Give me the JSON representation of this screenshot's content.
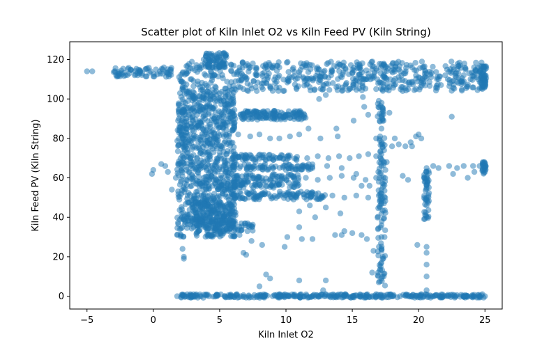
{
  "chart_data": {
    "type": "scatter",
    "title": "Scatter plot of Kiln Inlet O2 vs Kiln Feed PV (Kiln String)",
    "xlabel": "Kiln Inlet O2",
    "ylabel": "Kiln Feed PV (Kiln String)",
    "xlim": [
      -6.3,
      26.3
    ],
    "ylim": [
      -6.5,
      129
    ],
    "xticks": [
      -5,
      0,
      5,
      10,
      15,
      20,
      25
    ],
    "yticks": [
      0,
      20,
      40,
      60,
      80,
      100,
      120
    ],
    "grid": false,
    "legend": "none",
    "marker_color": "#1f77b4",
    "marker_alpha": 0.5,
    "points": [
      [
        -5.0,
        114
      ],
      [
        -4.6,
        114
      ],
      [
        -2.8,
        112
      ],
      [
        -2.5,
        113
      ],
      [
        -2.1,
        112
      ],
      [
        -1.8,
        113
      ],
      [
        -1.4,
        112
      ],
      [
        -1.0,
        114
      ],
      [
        -0.6,
        115
      ],
      [
        -0.2,
        114
      ],
      [
        0.2,
        115
      ],
      [
        0.5,
        114
      ],
      [
        0.8,
        116
      ],
      [
        0.7,
        115
      ],
      [
        -0.1,
        62
      ],
      [
        0.0,
        64
      ],
      [
        0.6,
        67
      ],
      [
        0.9,
        66
      ],
      [
        1.1,
        63
      ],
      [
        1.4,
        54
      ],
      [
        1.7,
        60
      ],
      [
        1.8,
        31
      ],
      [
        2.0,
        34
      ],
      [
        2.2,
        24
      ],
      [
        2.3,
        20
      ],
      [
        2.3,
        19
      ],
      [
        2.0,
        84
      ],
      [
        2.4,
        77
      ],
      [
        2.2,
        90
      ],
      [
        1.9,
        97
      ],
      [
        2.2,
        113
      ],
      [
        2.8,
        110
      ],
      [
        3.3,
        116
      ],
      [
        3.8,
        120
      ],
      [
        4.2,
        123
      ],
      [
        4.6,
        122
      ],
      [
        5.0,
        121
      ],
      [
        5.2,
        118
      ],
      [
        2.7,
        104
      ],
      [
        3.1,
        100
      ],
      [
        3.5,
        95
      ],
      [
        3.9,
        90
      ],
      [
        4.3,
        86
      ],
      [
        4.7,
        80
      ],
      [
        5.1,
        76
      ],
      [
        5.5,
        72
      ],
      [
        2.9,
        68
      ],
      [
        3.4,
        64
      ],
      [
        3.8,
        60
      ],
      [
        4.2,
        56
      ],
      [
        4.6,
        52
      ],
      [
        5.0,
        48
      ],
      [
        5.4,
        45
      ],
      [
        5.8,
        42
      ],
      [
        3.1,
        40
      ],
      [
        3.6,
        38
      ],
      [
        4.0,
        36
      ],
      [
        4.4,
        38
      ],
      [
        4.8,
        40
      ],
      [
        5.2,
        37
      ],
      [
        3.0,
        45
      ],
      [
        4.5,
        44
      ],
      [
        3.3,
        92
      ],
      [
        3.7,
        85
      ],
      [
        4.1,
        78
      ],
      [
        4.9,
        70
      ],
      [
        5.3,
        66
      ],
      [
        5.9,
        62
      ],
      [
        6.3,
        58
      ],
      [
        6.8,
        55
      ],
      [
        6.0,
        35
      ],
      [
        6.5,
        31
      ],
      [
        7.1,
        33
      ],
      [
        6.8,
        22
      ],
      [
        7.4,
        28
      ],
      [
        8.2,
        26
      ],
      [
        7.0,
        21
      ],
      [
        6.6,
        92
      ],
      [
        7.2,
        92
      ],
      [
        7.8,
        91
      ],
      [
        8.4,
        93
      ],
      [
        9.0,
        92
      ],
      [
        9.6,
        91
      ],
      [
        10.2,
        92
      ],
      [
        10.8,
        92
      ],
      [
        6.4,
        82
      ],
      [
        7.3,
        81
      ],
      [
        8.0,
        82
      ],
      [
        8.8,
        80
      ],
      [
        9.5,
        80
      ],
      [
        10.3,
        81
      ],
      [
        11.0,
        82
      ],
      [
        11.7,
        85
      ],
      [
        6.2,
        70
      ],
      [
        7.0,
        71
      ],
      [
        7.7,
        68
      ],
      [
        8.5,
        69
      ],
      [
        9.3,
        70
      ],
      [
        10.0,
        68
      ],
      [
        10.8,
        69
      ],
      [
        11.6,
        70
      ],
      [
        12.4,
        71
      ],
      [
        13.2,
        70
      ],
      [
        14.0,
        71
      ],
      [
        14.8,
        70
      ],
      [
        15.5,
        71
      ],
      [
        16.2,
        72
      ],
      [
        16.8,
        71
      ],
      [
        6.1,
        60
      ],
      [
        7.0,
        61
      ],
      [
        7.9,
        60
      ],
      [
        8.8,
        59
      ],
      [
        9.7,
        61
      ],
      [
        10.6,
        60
      ],
      [
        11.5,
        60
      ],
      [
        12.4,
        59
      ],
      [
        13.3,
        60
      ],
      [
        14.2,
        61
      ],
      [
        15.1,
        60
      ],
      [
        16.0,
        59
      ],
      [
        16.8,
        60
      ],
      [
        15.7,
        56
      ],
      [
        16.3,
        56
      ],
      [
        6.3,
        51
      ],
      [
        7.2,
        50
      ],
      [
        8.1,
        51
      ],
      [
        9.0,
        50
      ],
      [
        9.9,
        51
      ],
      [
        10.8,
        50
      ],
      [
        11.7,
        51
      ],
      [
        12.6,
        50
      ],
      [
        13.5,
        51
      ],
      [
        14.4,
        50
      ],
      [
        15.3,
        51
      ],
      [
        16.2,
        50
      ],
      [
        17.0,
        51
      ],
      [
        15.3,
        62
      ],
      [
        16.8,
        80
      ],
      [
        6.5,
        65
      ],
      [
        7.6,
        66
      ],
      [
        8.7,
        65
      ],
      [
        9.8,
        66
      ],
      [
        10.9,
        66
      ],
      [
        12.0,
        65
      ],
      [
        13.1,
        66
      ],
      [
        14.2,
        65
      ],
      [
        13.0,
        45
      ],
      [
        14.1,
        42
      ],
      [
        11.8,
        46
      ],
      [
        11.0,
        43
      ],
      [
        10.5,
        52
      ],
      [
        11.9,
        52
      ],
      [
        12.2,
        40
      ],
      [
        8.0,
        5
      ],
      [
        8.5,
        11
      ],
      [
        8.8,
        9
      ],
      [
        10.1,
        30
      ],
      [
        9.9,
        25
      ],
      [
        11.0,
        35
      ],
      [
        11.2,
        29
      ],
      [
        12.0,
        29
      ],
      [
        11.0,
        8
      ],
      [
        13.0,
        8
      ],
      [
        12.8,
        3
      ],
      [
        13.7,
        31
      ],
      [
        14.2,
        31
      ],
      [
        15.0,
        32
      ],
      [
        15.7,
        31
      ],
      [
        16.1,
        29
      ],
      [
        16.6,
        23
      ],
      [
        16.5,
        12
      ],
      [
        14.4,
        33
      ],
      [
        15.1,
        89
      ],
      [
        13.9,
        81
      ],
      [
        12.6,
        80
      ],
      [
        13.8,
        85
      ],
      [
        12.5,
        100
      ],
      [
        13.0,
        102
      ],
      [
        15.8,
        101
      ],
      [
        15.9,
        96
      ],
      [
        16.2,
        92
      ],
      [
        17.0,
        99
      ],
      [
        17.3,
        95
      ],
      [
        17.8,
        93
      ],
      [
        18.2,
        80
      ],
      [
        17.2,
        91
      ],
      [
        17.2,
        85
      ],
      [
        17.2,
        78
      ],
      [
        17.2,
        72
      ],
      [
        17.2,
        66
      ],
      [
        17.2,
        60
      ],
      [
        17.2,
        54
      ],
      [
        17.2,
        48
      ],
      [
        17.2,
        42
      ],
      [
        17.2,
        36
      ],
      [
        17.2,
        30
      ],
      [
        17.2,
        24
      ],
      [
        17.2,
        17
      ],
      [
        17.2,
        9
      ],
      [
        17.0,
        7
      ],
      [
        17.3,
        20
      ],
      [
        17.4,
        74
      ],
      [
        17.6,
        68
      ],
      [
        17.1,
        81
      ],
      [
        17.5,
        64
      ],
      [
        17.0,
        58
      ],
      [
        18.0,
        76
      ],
      [
        18.5,
        77
      ],
      [
        19.0,
        76
      ],
      [
        19.4,
        78
      ],
      [
        19.8,
        81
      ],
      [
        20.2,
        80
      ],
      [
        20.0,
        82
      ],
      [
        19.5,
        76
      ],
      [
        18.8,
        61
      ],
      [
        19.2,
        59
      ],
      [
        20.6,
        65
      ],
      [
        21.1,
        66
      ],
      [
        21.5,
        65
      ],
      [
        22.3,
        66
      ],
      [
        22.9,
        65
      ],
      [
        23.4,
        66
      ],
      [
        24.1,
        66
      ],
      [
        24.6,
        66
      ],
      [
        22.6,
        62
      ],
      [
        23.7,
        60
      ],
      [
        24.2,
        63
      ],
      [
        22.5,
        91
      ],
      [
        21.5,
        110
      ],
      [
        22.0,
        112
      ],
      [
        20.6,
        60
      ],
      [
        20.6,
        55
      ],
      [
        20.6,
        50
      ],
      [
        20.6,
        46
      ],
      [
        20.6,
        40
      ],
      [
        20.6,
        25
      ],
      [
        20.6,
        22
      ],
      [
        20.6,
        16
      ],
      [
        20.6,
        10
      ],
      [
        20.6,
        3
      ],
      [
        20.5,
        1
      ],
      [
        19.9,
        26
      ],
      [
        25.0,
        67
      ],
      [
        25.0,
        66
      ],
      [
        25.0,
        65
      ],
      [
        25.0,
        64
      ],
      [
        25.0,
        63
      ],
      [
        25.0,
        110
      ],
      [
        25.0,
        112
      ],
      [
        25.0,
        115
      ],
      [
        25.0,
        108
      ],
      [
        24.6,
        114
      ],
      [
        24.2,
        112
      ],
      [
        23.8,
        113
      ],
      [
        23.4,
        112
      ],
      [
        23.0,
        113
      ],
      [
        6.2,
        109
      ],
      [
        7.0,
        110
      ],
      [
        7.8,
        112
      ],
      [
        8.6,
        110
      ],
      [
        9.4,
        111
      ],
      [
        10.2,
        109
      ],
      [
        11.0,
        112
      ],
      [
        11.8,
        110
      ],
      [
        12.6,
        111
      ],
      [
        13.4,
        112
      ],
      [
        14.2,
        111
      ],
      [
        15.0,
        113
      ],
      [
        15.8,
        110
      ],
      [
        16.6,
        112
      ],
      [
        17.4,
        111
      ],
      [
        18.2,
        114
      ],
      [
        19.0,
        113
      ],
      [
        19.8,
        112
      ],
      [
        20.6,
        113
      ],
      [
        21.4,
        111
      ],
      [
        22.2,
        110
      ],
      [
        6.5,
        116
      ],
      [
        7.5,
        118
      ],
      [
        8.5,
        117
      ],
      [
        9.5,
        116
      ],
      [
        10.5,
        115
      ],
      [
        11.5,
        116
      ],
      [
        12.5,
        115
      ],
      [
        13.5,
        114
      ],
      [
        14.5,
        115
      ],
      [
        15.5,
        116
      ],
      [
        16.5,
        115
      ],
      [
        17.5,
        116
      ],
      [
        18.5,
        115
      ],
      [
        19.5,
        116
      ],
      [
        20.5,
        114
      ],
      [
        6.8,
        105
      ],
      [
        7.8,
        104
      ],
      [
        8.8,
        106
      ],
      [
        9.8,
        104
      ],
      [
        10.8,
        105
      ],
      [
        11.8,
        106
      ],
      [
        12.8,
        105
      ],
      [
        13.8,
        106
      ],
      [
        14.8,
        105
      ],
      [
        15.8,
        106
      ],
      [
        16.8,
        105
      ],
      [
        17.8,
        106
      ],
      [
        18.8,
        106
      ],
      [
        19.8,
        105
      ],
      [
        1.8,
        0
      ],
      [
        2.4,
        0
      ],
      [
        3.0,
        0
      ],
      [
        3.6,
        0
      ],
      [
        4.2,
        0
      ],
      [
        4.8,
        0
      ],
      [
        5.4,
        0
      ],
      [
        6.0,
        0
      ],
      [
        6.6,
        0
      ],
      [
        7.2,
        0
      ],
      [
        7.8,
        0
      ],
      [
        8.4,
        0
      ],
      [
        9.0,
        0
      ],
      [
        9.6,
        0
      ],
      [
        10.2,
        0
      ],
      [
        10.8,
        0
      ],
      [
        11.4,
        0
      ],
      [
        12.0,
        0
      ],
      [
        12.6,
        0
      ],
      [
        13.2,
        0
      ],
      [
        13.8,
        0
      ],
      [
        14.4,
        0
      ],
      [
        15.0,
        0
      ],
      [
        15.6,
        0
      ],
      [
        16.2,
        0
      ],
      [
        16.8,
        0
      ],
      [
        17.4,
        0
      ],
      [
        18.0,
        0
      ],
      [
        18.6,
        0
      ],
      [
        19.2,
        0
      ],
      [
        19.8,
        0
      ],
      [
        20.4,
        0
      ],
      [
        21.0,
        0
      ],
      [
        21.6,
        0
      ],
      [
        22.2,
        0
      ],
      [
        22.8,
        0
      ],
      [
        23.4,
        0
      ],
      [
        24.0,
        0
      ],
      [
        24.6,
        0
      ],
      [
        25.0,
        0
      ],
      [
        6.3,
        1
      ],
      [
        9.5,
        1
      ],
      [
        13.0,
        1
      ],
      [
        16.8,
        1
      ],
      [
        20.2,
        1
      ],
      [
        24.8,
        1
      ]
    ],
    "regions": [
      [
        1.9,
        25.0,
        104.0,
        119.0,
        520,
        1.6,
        0.9
      ],
      [
        -3.0,
        1.5,
        111.0,
        116.0,
        60,
        0.6,
        0.6
      ],
      [
        3.9,
        5.6,
        116.0,
        123.5,
        70,
        0.6,
        0.6
      ],
      [
        1.8,
        6.2,
        30.0,
        104.0,
        900,
        1.0,
        1.6
      ],
      [
        3.0,
        6.0,
        34.0,
        48.0,
        150,
        0.6,
        0.6
      ],
      [
        5.5,
        7.5,
        33.0,
        37.0,
        30,
        0.5,
        0.5
      ],
      [
        6.5,
        11.5,
        89.5,
        94.0,
        130,
        0.5,
        0.5
      ],
      [
        6.0,
        11.0,
        55.0,
        62.0,
        120,
        0.8,
        0.8
      ],
      [
        6.0,
        13.0,
        49.0,
        53.0,
        100,
        0.8,
        0.8
      ],
      [
        6.0,
        12.0,
        64.0,
        67.0,
        70,
        0.8,
        0.8
      ],
      [
        6.0,
        11.0,
        69.0,
        72.0,
        60,
        0.8,
        0.8
      ],
      [
        16.9,
        17.5,
        5.0,
        81.0,
        90,
        0.3,
        1.0
      ],
      [
        16.9,
        17.4,
        88.0,
        99.0,
        20,
        0.3,
        0.8
      ],
      [
        20.4,
        20.8,
        39.0,
        65.0,
        45,
        0.2,
        0.8
      ],
      [
        24.8,
        25.1,
        62.0,
        68.0,
        20,
        0.2,
        0.5
      ],
      [
        24.6,
        25.1,
        105.0,
        117.0,
        50,
        0.3,
        0.6
      ],
      [
        2.0,
        25.0,
        -0.8,
        1.0,
        320,
        0.8,
        0.2
      ]
    ]
  }
}
